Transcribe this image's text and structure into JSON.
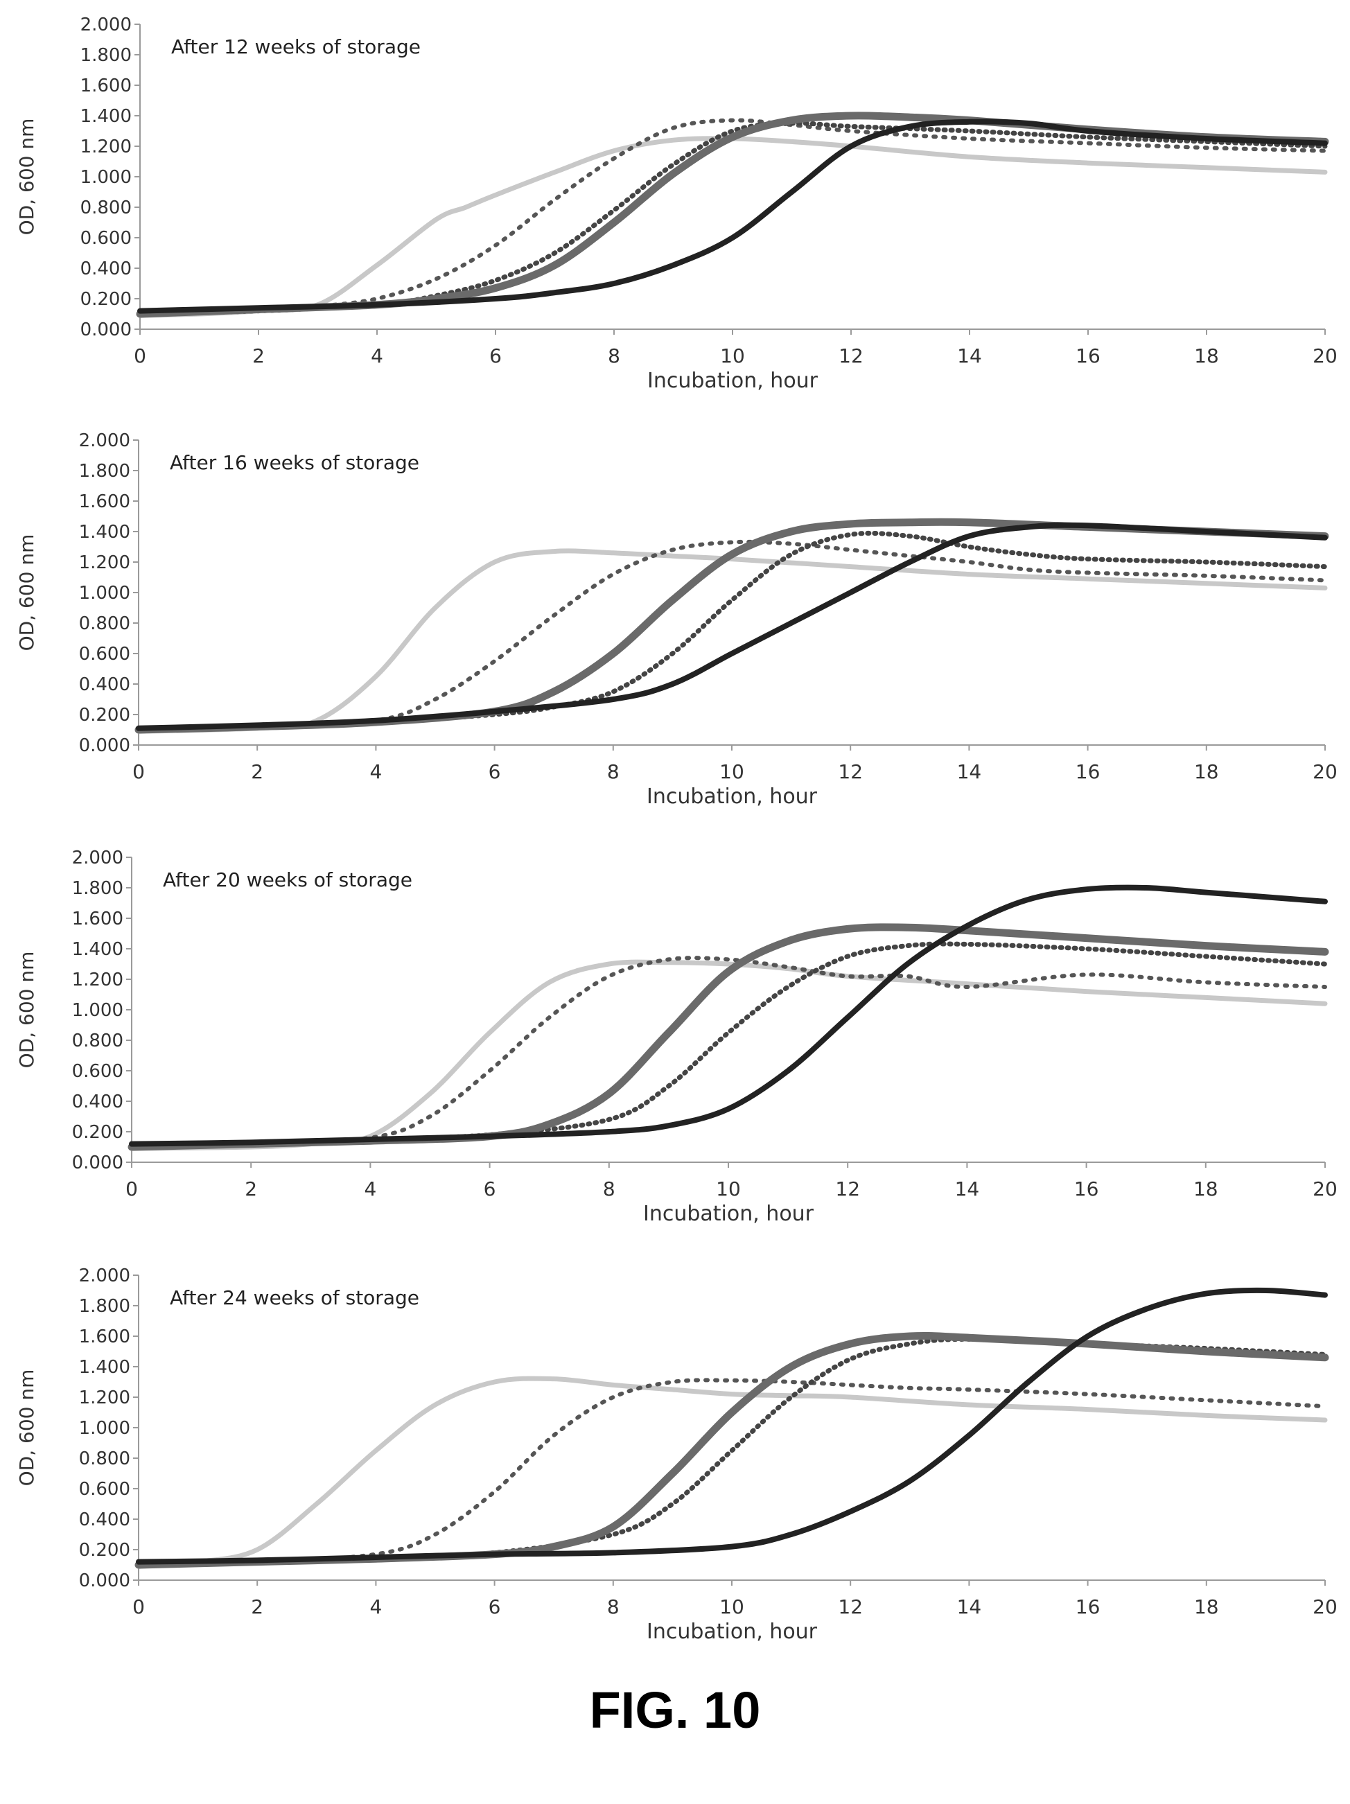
{
  "figure_label": "FIG. 10",
  "chart_data": [
    {
      "type": "line",
      "title": "After 12 weeks of storage",
      "xlabel": "Incubation, hour",
      "ylabel": "OD, 600 nm",
      "xlim": [
        0,
        20
      ],
      "ylim": [
        0,
        2
      ],
      "xticks": [
        "0",
        "2",
        "4",
        "6",
        "8",
        "10",
        "12",
        "14",
        "16",
        "18",
        "20"
      ],
      "yticks": [
        "0.000",
        "0.200",
        "0.400",
        "0.600",
        "0.800",
        "1.000",
        "1.200",
        "1.400",
        "1.600",
        "1.800",
        "2.000"
      ],
      "grid": false,
      "series": [
        {
          "style": "light-solid",
          "color": "#c8c8c8",
          "x": [
            0,
            1,
            2,
            3,
            4,
            5,
            5.5,
            6,
            7,
            8,
            9,
            10,
            11,
            12,
            14,
            16,
            18,
            20
          ],
          "y": [
            0.09,
            0.1,
            0.12,
            0.16,
            0.42,
            0.72,
            0.8,
            0.88,
            1.03,
            1.17,
            1.24,
            1.25,
            1.23,
            1.2,
            1.13,
            1.09,
            1.06,
            1.03
          ]
        },
        {
          "style": "dotted",
          "color": "#555555",
          "x": [
            0,
            2,
            3,
            4,
            5,
            6,
            7,
            8,
            9,
            10,
            11,
            12,
            14,
            16,
            18,
            20
          ],
          "y": [
            0.1,
            0.12,
            0.15,
            0.2,
            0.33,
            0.55,
            0.85,
            1.12,
            1.32,
            1.37,
            1.34,
            1.3,
            1.25,
            1.22,
            1.19,
            1.17
          ]
        },
        {
          "style": "cross-dotted",
          "color": "#444444",
          "x": [
            0,
            2,
            4,
            5,
            6,
            7,
            8,
            9,
            10,
            11,
            12,
            14,
            16,
            18,
            20
          ],
          "y": [
            0.1,
            0.12,
            0.16,
            0.22,
            0.32,
            0.5,
            0.78,
            1.08,
            1.3,
            1.35,
            1.33,
            1.3,
            1.26,
            1.23,
            1.2
          ]
        },
        {
          "style": "hatched",
          "color": "#6a6a6a",
          "x": [
            0,
            2,
            4,
            5,
            6,
            7,
            8,
            9,
            10,
            11,
            12,
            13,
            14,
            16,
            18,
            20
          ],
          "y": [
            0.1,
            0.13,
            0.16,
            0.2,
            0.27,
            0.42,
            0.7,
            1.02,
            1.26,
            1.37,
            1.4,
            1.39,
            1.37,
            1.31,
            1.26,
            1.23
          ]
        },
        {
          "style": "dark-hatched",
          "color": "#222222",
          "x": [
            0,
            2,
            4,
            6,
            7,
            8,
            9,
            10,
            11,
            12,
            13,
            14,
            15,
            16,
            18,
            20
          ],
          "y": [
            0.12,
            0.14,
            0.16,
            0.2,
            0.24,
            0.3,
            0.42,
            0.6,
            0.9,
            1.2,
            1.33,
            1.36,
            1.35,
            1.3,
            1.25,
            1.22
          ]
        }
      ]
    },
    {
      "type": "line",
      "title": "After 16 weeks of storage",
      "xlabel": "Incubation, hour",
      "ylabel": "OD, 600 nm",
      "xlim": [
        0,
        20
      ],
      "ylim": [
        0,
        2
      ],
      "xticks": [
        "0",
        "2",
        "4",
        "6",
        "8",
        "10",
        "12",
        "14",
        "16",
        "18",
        "20"
      ],
      "yticks": [
        "0.000",
        "0.200",
        "0.400",
        "0.600",
        "0.800",
        "1.000",
        "1.200",
        "1.400",
        "1.600",
        "1.800",
        "2.000"
      ],
      "grid": false,
      "series": [
        {
          "style": "light-solid",
          "color": "#c8c8c8",
          "x": [
            0,
            2,
            3,
            4,
            5,
            6,
            7,
            8,
            9,
            10,
            12,
            14,
            16,
            18,
            20
          ],
          "y": [
            0.09,
            0.11,
            0.16,
            0.45,
            0.9,
            1.2,
            1.27,
            1.26,
            1.24,
            1.22,
            1.17,
            1.12,
            1.09,
            1.06,
            1.03
          ]
        },
        {
          "style": "dotted",
          "color": "#555555",
          "x": [
            0,
            2,
            4,
            5,
            6,
            7,
            8,
            9,
            10,
            11,
            12,
            13,
            14,
            15,
            16,
            18,
            20
          ],
          "y": [
            0.1,
            0.12,
            0.16,
            0.3,
            0.55,
            0.85,
            1.12,
            1.28,
            1.33,
            1.32,
            1.28,
            1.24,
            1.2,
            1.15,
            1.13,
            1.11,
            1.08
          ]
        },
        {
          "style": "cross-dotted",
          "color": "#444444",
          "x": [
            0,
            2,
            4,
            6,
            7,
            8,
            9,
            10,
            11,
            12,
            13,
            14,
            15,
            16,
            18,
            20
          ],
          "y": [
            0.1,
            0.12,
            0.15,
            0.2,
            0.25,
            0.35,
            0.6,
            0.95,
            1.25,
            1.38,
            1.37,
            1.3,
            1.25,
            1.22,
            1.2,
            1.17
          ]
        },
        {
          "style": "hatched",
          "color": "#6a6a6a",
          "x": [
            0,
            2,
            4,
            6,
            7,
            8,
            9,
            10,
            11,
            12,
            13,
            14,
            16,
            18,
            20
          ],
          "y": [
            0.1,
            0.12,
            0.15,
            0.22,
            0.35,
            0.6,
            0.95,
            1.25,
            1.4,
            1.45,
            1.46,
            1.46,
            1.43,
            1.4,
            1.37
          ]
        },
        {
          "style": "dark-hatched",
          "color": "#222222",
          "x": [
            0,
            2,
            4,
            6,
            8,
            9,
            10,
            11,
            12,
            13,
            14,
            15,
            16,
            18,
            20
          ],
          "y": [
            0.11,
            0.13,
            0.16,
            0.22,
            0.3,
            0.4,
            0.6,
            0.8,
            1.0,
            1.2,
            1.37,
            1.43,
            1.44,
            1.4,
            1.36
          ]
        }
      ]
    },
    {
      "type": "line",
      "title": "After 20 weeks of storage",
      "xlabel": "Incubation, hour",
      "ylabel": "OD, 600 nm",
      "xlim": [
        0,
        20
      ],
      "ylim": [
        0,
        2
      ],
      "xticks": [
        "0",
        "2",
        "4",
        "6",
        "8",
        "10",
        "12",
        "14",
        "16",
        "18",
        "20"
      ],
      "yticks": [
        "0.000",
        "0.200",
        "0.400",
        "0.600",
        "0.800",
        "1.000",
        "1.200",
        "1.400",
        "1.600",
        "1.800",
        "2.000"
      ],
      "grid": false,
      "series": [
        {
          "style": "light-solid",
          "color": "#c8c8c8",
          "x": [
            0,
            2,
            3,
            4,
            5,
            6,
            7,
            8,
            9,
            10,
            11,
            12,
            14,
            16,
            18,
            20
          ],
          "y": [
            0.09,
            0.1,
            0.12,
            0.17,
            0.45,
            0.85,
            1.18,
            1.3,
            1.31,
            1.3,
            1.27,
            1.22,
            1.17,
            1.12,
            1.08,
            1.04
          ]
        },
        {
          "style": "dotted",
          "color": "#555555",
          "x": [
            0,
            2,
            4,
            5,
            6,
            7,
            8,
            9,
            10,
            11,
            12,
            13,
            14,
            16,
            18,
            20
          ],
          "y": [
            0.1,
            0.12,
            0.16,
            0.3,
            0.6,
            0.95,
            1.22,
            1.33,
            1.33,
            1.28,
            1.22,
            1.22,
            1.15,
            1.23,
            1.18,
            1.15
          ]
        },
        {
          "style": "cross-dotted",
          "color": "#444444",
          "x": [
            0,
            2,
            4,
            6,
            8,
            9,
            10,
            11,
            12,
            13,
            14,
            16,
            18,
            20
          ],
          "y": [
            0.1,
            0.12,
            0.15,
            0.18,
            0.28,
            0.5,
            0.85,
            1.15,
            1.35,
            1.42,
            1.43,
            1.4,
            1.35,
            1.3
          ]
        },
        {
          "style": "hatched",
          "color": "#6a6a6a",
          "x": [
            0,
            2,
            4,
            6,
            7,
            8,
            9,
            10,
            11,
            12,
            13,
            14,
            16,
            18,
            20
          ],
          "y": [
            0.1,
            0.12,
            0.14,
            0.17,
            0.25,
            0.45,
            0.85,
            1.25,
            1.45,
            1.53,
            1.54,
            1.52,
            1.47,
            1.42,
            1.38
          ]
        },
        {
          "style": "dark-hatched",
          "color": "#222222",
          "x": [
            0,
            2,
            4,
            6,
            8,
            9,
            10,
            11,
            12,
            13,
            14,
            15,
            16,
            17,
            18,
            20
          ],
          "y": [
            0.12,
            0.13,
            0.15,
            0.17,
            0.2,
            0.24,
            0.35,
            0.6,
            0.95,
            1.3,
            1.55,
            1.72,
            1.79,
            1.8,
            1.77,
            1.71
          ]
        }
      ]
    },
    {
      "type": "line",
      "title": "After 24 weeks of storage",
      "xlabel": "Incubation, hour",
      "ylabel": "OD, 600 nm",
      "xlim": [
        0,
        20
      ],
      "ylim": [
        0,
        2
      ],
      "xticks": [
        "0",
        "2",
        "4",
        "6",
        "8",
        "10",
        "12",
        "14",
        "16",
        "18",
        "20"
      ],
      "yticks": [
        "0.000",
        "0.200",
        "0.400",
        "0.600",
        "0.800",
        "1.000",
        "1.200",
        "1.400",
        "1.600",
        "1.800",
        "2.000"
      ],
      "grid": false,
      "series": [
        {
          "style": "light-solid",
          "color": "#c8c8c8",
          "x": [
            0,
            1,
            2,
            3,
            4,
            5,
            6,
            7,
            8,
            9,
            10,
            11,
            12,
            14,
            16,
            18,
            20
          ],
          "y": [
            0.09,
            0.12,
            0.2,
            0.5,
            0.85,
            1.15,
            1.3,
            1.32,
            1.28,
            1.25,
            1.22,
            1.21,
            1.2,
            1.15,
            1.12,
            1.08,
            1.05
          ]
        },
        {
          "style": "dotted",
          "color": "#555555",
          "x": [
            0,
            2,
            4,
            5,
            6,
            7,
            8,
            9,
            10,
            11,
            12,
            13,
            14,
            16,
            18,
            20
          ],
          "y": [
            0.1,
            0.12,
            0.17,
            0.3,
            0.58,
            0.95,
            1.2,
            1.3,
            1.31,
            1.3,
            1.28,
            1.26,
            1.25,
            1.22,
            1.18,
            1.14
          ]
        },
        {
          "style": "cross-dotted",
          "color": "#444444",
          "x": [
            0,
            2,
            4,
            6,
            8,
            9,
            10,
            11,
            12,
            13,
            14,
            16,
            18,
            20
          ],
          "y": [
            0.1,
            0.12,
            0.15,
            0.18,
            0.3,
            0.5,
            0.85,
            1.2,
            1.45,
            1.55,
            1.58,
            1.55,
            1.52,
            1.48
          ]
        },
        {
          "style": "hatched",
          "color": "#6a6a6a",
          "x": [
            0,
            2,
            4,
            6,
            7,
            8,
            9,
            10,
            11,
            12,
            13,
            14,
            16,
            18,
            20
          ],
          "y": [
            0.1,
            0.12,
            0.14,
            0.17,
            0.22,
            0.35,
            0.7,
            1.1,
            1.4,
            1.55,
            1.6,
            1.59,
            1.55,
            1.5,
            1.46
          ]
        },
        {
          "style": "dark-hatched",
          "color": "#222222",
          "x": [
            0,
            2,
            4,
            6,
            8,
            10,
            11,
            12,
            13,
            14,
            15,
            16,
            17,
            18,
            19,
            20
          ],
          "y": [
            0.12,
            0.13,
            0.15,
            0.17,
            0.18,
            0.22,
            0.3,
            0.45,
            0.65,
            0.95,
            1.3,
            1.6,
            1.78,
            1.88,
            1.9,
            1.87
          ]
        }
      ]
    }
  ]
}
